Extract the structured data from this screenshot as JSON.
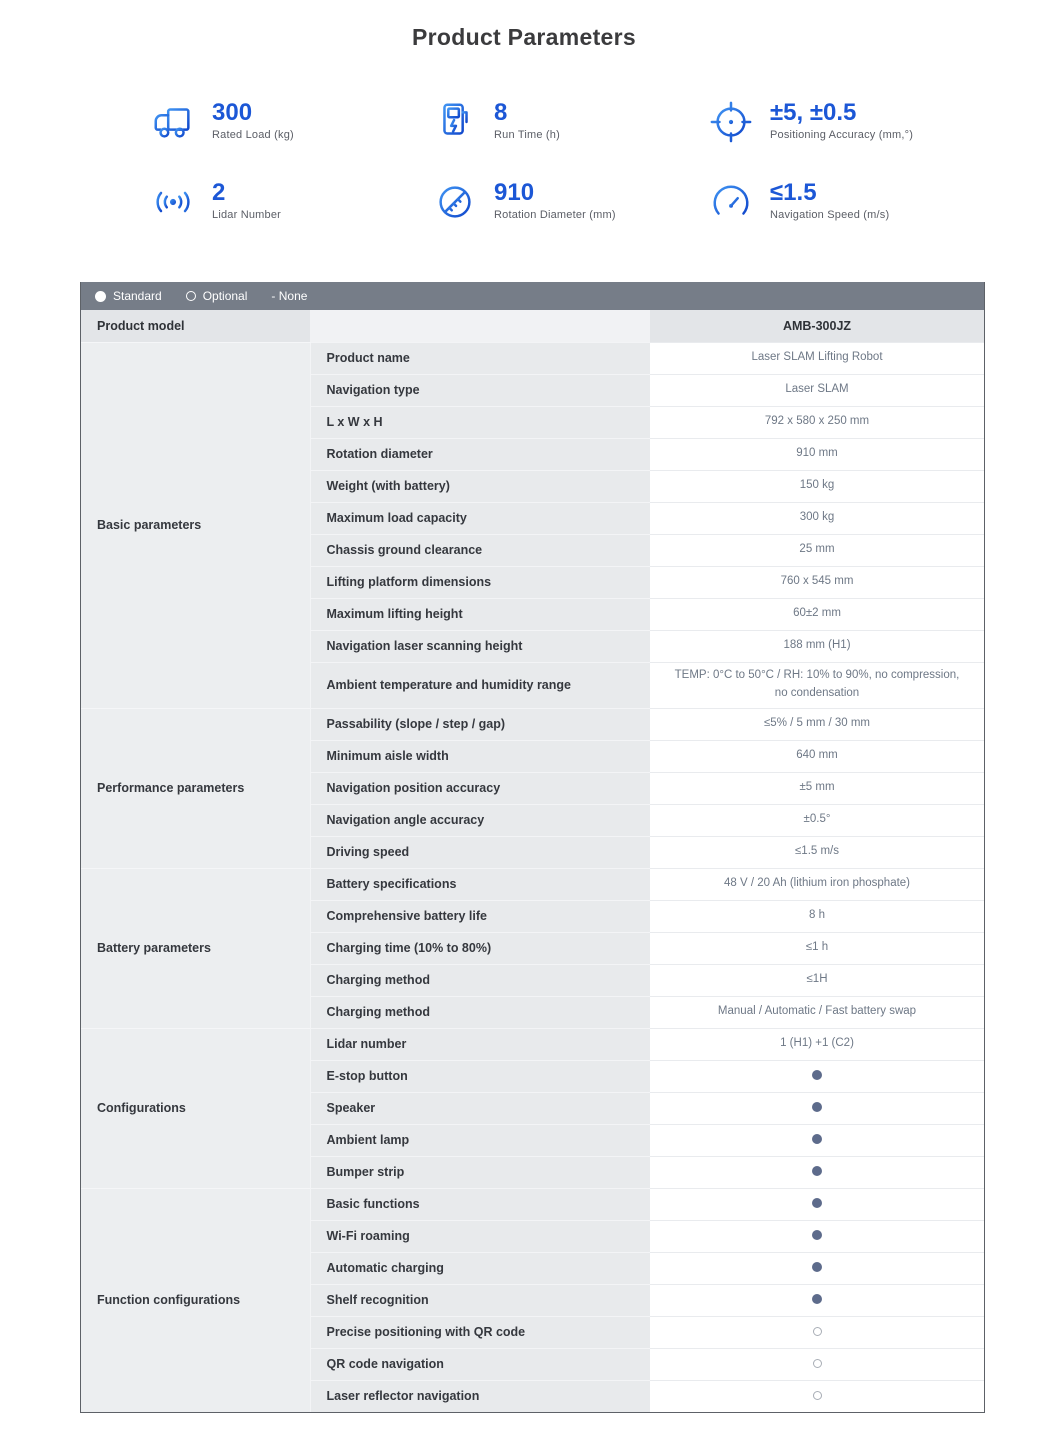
{
  "page": {
    "title": "Product Parameters"
  },
  "stats": [
    {
      "icon": "truck-icon",
      "value": "300",
      "label": "Rated Load (kg)"
    },
    {
      "icon": "charging-station-icon",
      "value": "8",
      "label": "Run Time (h)"
    },
    {
      "icon": "target-icon",
      "value": "±5, ±0.5",
      "label": "Positioning Accuracy (mm,°)"
    },
    {
      "icon": "lidar-icon",
      "value": "2",
      "label": "Lidar Number"
    },
    {
      "icon": "diameter-icon",
      "value": "910",
      "label": "Rotation Diameter (mm)"
    },
    {
      "icon": "speedometer-icon",
      "value": "≤1.5",
      "label": "Navigation Speed (m/s)"
    }
  ],
  "legend": {
    "standard": "Standard",
    "optional": "Optional",
    "none": "- None"
  },
  "table": {
    "model_row": {
      "label": "Product model",
      "value": "AMB-300JZ"
    },
    "sections": [
      {
        "label": "Basic parameters",
        "rows": [
          {
            "param": "Product name",
            "value": "Laser SLAM Lifting Robot"
          },
          {
            "param": "Navigation type",
            "value": "Laser SLAM"
          },
          {
            "param": "L x W x H",
            "value": "792 x 580 x 250 mm"
          },
          {
            "param": "Rotation diameter",
            "value": "910 mm"
          },
          {
            "param": "Weight (with battery)",
            "value": "150 kg"
          },
          {
            "param": "Maximum load capacity",
            "value": "300 kg"
          },
          {
            "param": "Chassis ground clearance",
            "value": "25 mm"
          },
          {
            "param": "Lifting platform dimensions",
            "value": "760 x 545 mm"
          },
          {
            "param": "Maximum lifting height",
            "value": "60±2 mm"
          },
          {
            "param": "Navigation laser scanning height",
            "value": "188 mm (H1)"
          },
          {
            "param": "Ambient temperature and humidity range",
            "value": "TEMP: 0°C to 50°C / RH: 10% to 90%, no compression, no condensation",
            "tall": true
          }
        ]
      },
      {
        "label": "Performance parameters",
        "rows": [
          {
            "param": "Passability (slope / step / gap)",
            "value": "≤5% / 5 mm / 30 mm"
          },
          {
            "param": "Minimum aisle width",
            "value": "640 mm"
          },
          {
            "param": "Navigation position accuracy",
            "value": "±5 mm"
          },
          {
            "param": "Navigation angle accuracy",
            "value": "±0.5°"
          },
          {
            "param": "Driving speed",
            "value": "≤1.5 m/s"
          }
        ]
      },
      {
        "label": "Battery parameters",
        "rows": [
          {
            "param": "Battery specifications",
            "value": "48 V / 20 Ah (lithium iron phosphate)"
          },
          {
            "param": "Comprehensive battery life",
            "value": "8 h"
          },
          {
            "param": "Charging time (10% to 80%)",
            "value": "≤1 h"
          },
          {
            "param": "Charging method",
            "value": "≤1H"
          },
          {
            "param": "Charging method",
            "value": "Manual / Automatic / Fast battery swap"
          }
        ]
      },
      {
        "label": "Configurations",
        "rows": [
          {
            "param": "Lidar number",
            "value": "1 (H1) +1 (C2)"
          },
          {
            "param": "E-stop button",
            "marker": "standard"
          },
          {
            "param": "Speaker",
            "marker": "standard"
          },
          {
            "param": "Ambient lamp",
            "marker": "standard"
          },
          {
            "param": "Bumper strip",
            "marker": "standard"
          }
        ]
      },
      {
        "label": "Function configurations",
        "rows": [
          {
            "param": "Basic functions",
            "marker": "standard"
          },
          {
            "param": "Wi-Fi roaming",
            "marker": "standard"
          },
          {
            "param": "Automatic charging",
            "marker": "standard"
          },
          {
            "param": "Shelf recognition",
            "marker": "standard"
          },
          {
            "param": "Precise positioning with QR code",
            "marker": "optional"
          },
          {
            "param": "QR code navigation",
            "marker": "optional"
          },
          {
            "param": "Laser reflector navigation",
            "marker": "optional"
          }
        ]
      }
    ]
  },
  "colors": {
    "accent_blue": "#1c57d6",
    "legend_bar": "#767d88",
    "standard_dot": "#5d6b8b",
    "optional_circle_border": "#a9aeb6"
  }
}
